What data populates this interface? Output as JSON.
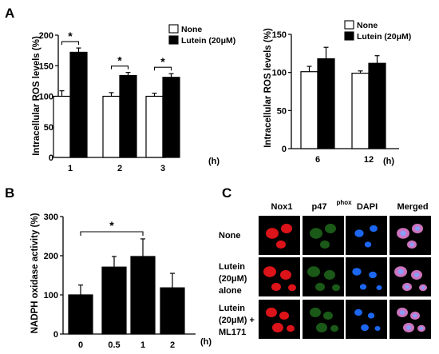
{
  "panels": {
    "a": "A",
    "b": "B",
    "c": "C"
  },
  "chart_data": [
    {
      "type": "bar",
      "panel": "A",
      "ylabel": "Intracellular ROS levels (%)",
      "x_unit": "(h)",
      "categories": [
        "1",
        "2",
        "3"
      ],
      "ylim": [
        0,
        200
      ],
      "yticks": [
        0,
        50,
        100,
        150,
        200
      ],
      "series": [
        {
          "name": "None",
          "color": "#ffffff",
          "values": [
            100,
            100,
            100
          ],
          "errors": [
            9,
            6,
            5
          ]
        },
        {
          "name": "Lutein (20μM)",
          "color": "#000000",
          "values": [
            172,
            134,
            131
          ],
          "errors": [
            7,
            5,
            6
          ]
        }
      ],
      "significance": [
        "*",
        "*",
        "*"
      ],
      "legend_position": "top-right"
    },
    {
      "type": "bar",
      "panel": "A",
      "ylabel": "Intracellular ROS levels (%)",
      "x_unit": "(h)",
      "categories": [
        "6",
        "12"
      ],
      "ylim": [
        0,
        150
      ],
      "yticks": [
        0,
        50,
        100,
        150
      ],
      "series": [
        {
          "name": "None",
          "color": "#ffffff",
          "values": [
            101,
            99
          ],
          "errors": [
            7,
            3
          ]
        },
        {
          "name": "Lutein (20μM)",
          "color": "#000000",
          "values": [
            118,
            112
          ],
          "errors": [
            15,
            10
          ]
        }
      ],
      "legend_position": "top-right"
    },
    {
      "type": "bar",
      "panel": "B",
      "ylabel": "NADPH oxidase activity (%)",
      "x_unit": "(h)",
      "categories": [
        "0",
        "0.5",
        "1",
        "2"
      ],
      "ylim": [
        0,
        300
      ],
      "yticks": [
        0,
        100,
        200,
        300
      ],
      "series": [
        {
          "color": "#000000",
          "values": [
            100,
            171,
            198,
            118
          ],
          "errors": [
            25,
            27,
            45,
            37
          ]
        }
      ],
      "significance": [
        "*"
      ]
    }
  ],
  "microscopy": {
    "columns": [
      "Nox1",
      "p47",
      "phox",
      "DAPI",
      "Merged"
    ],
    "rows": [
      {
        "line1": "None",
        "line2": "",
        "line3": ""
      },
      {
        "line1": "Lutein",
        "line2": "(20μM)",
        "line3": "alone"
      },
      {
        "line1": "Lutein",
        "line2": "(20μM) +",
        "line3": "ML171"
      }
    ],
    "colors": {
      "nox1": "#e8141a",
      "p47": "#2fa32a",
      "dapi": "#1e6dff",
      "merged": "#d77ac8"
    }
  }
}
